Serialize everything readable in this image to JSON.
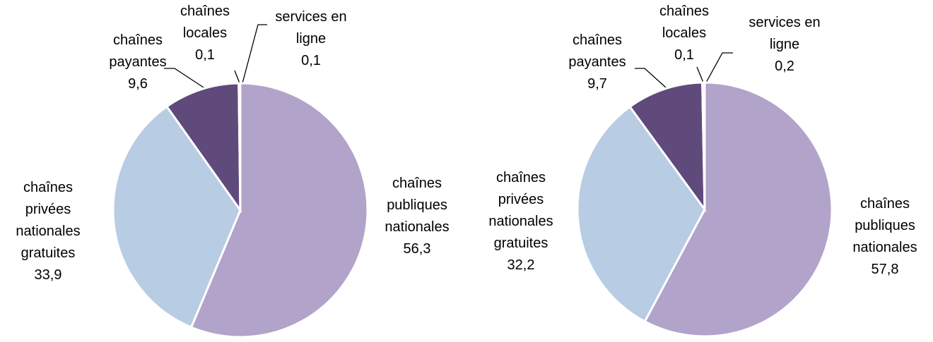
{
  "chart_data": [
    {
      "type": "pie",
      "categories": [
        "chaînes\npubliques\nnationales",
        "chaînes\nprivées\nnationales\ngratuites",
        "chaînes\npayantes",
        "chaînes\nlocales",
        "services en\nligne"
      ],
      "values": [
        56.3,
        33.9,
        9.6,
        0.1,
        0.1
      ],
      "value_labels": [
        "56,3",
        "33,9",
        "9,6",
        "0,1",
        "0,1"
      ],
      "colors": [
        "#b1a3c9",
        "#b8cce4",
        "#604a7b",
        "#8064a2",
        "#4f81bd"
      ]
    },
    {
      "type": "pie",
      "categories": [
        "chaînes\npubliques\nnationales",
        "chaînes\nprivées\nnationales\ngratuites",
        "chaînes\npayantes",
        "chaînes\nlocales",
        "services en\nligne"
      ],
      "values": [
        57.8,
        32.2,
        9.7,
        0.1,
        0.2
      ],
      "value_labels": [
        "57,8",
        "32,2",
        "9,7",
        "0,1",
        "0,2"
      ],
      "colors": [
        "#b1a3c9",
        "#b8cce4",
        "#604a7b",
        "#8064a2",
        "#4f81bd"
      ]
    }
  ]
}
